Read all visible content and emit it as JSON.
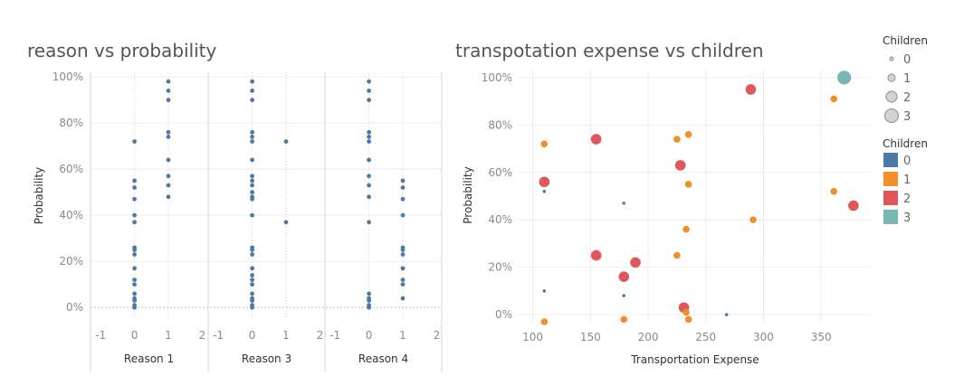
{
  "colors": {
    "reason_dots": "#4e79a7",
    "children_0": "#4e79a7",
    "children_1": "#f28e2b",
    "children_2": "#e15759",
    "children_3": "#76b7b2",
    "grid": "#ececec",
    "zero_line": "#bdbdbd",
    "panel_divider": "#d4d4d4",
    "size_legend_fill": "#d3d3d3",
    "size_legend_stroke": "#9a9a9a"
  },
  "chart_data": [
    {
      "type": "scatter",
      "title": "reason vs probability",
      "ylabel": "Probability",
      "ylim": [
        -0.05,
        1.02
      ],
      "y_ticks": [
        "0%",
        "20%",
        "40%",
        "60%",
        "80%",
        "100%"
      ],
      "x_ticks": [
        "-1",
        "0",
        "1",
        "2"
      ],
      "xlim": [
        -1.3,
        2.15
      ],
      "panels": [
        {
          "label": "Reason 1",
          "points": [
            {
              "x": 0,
              "y": 0.72
            },
            {
              "x": 0,
              "y": 0.55
            },
            {
              "x": 0,
              "y": 0.52
            },
            {
              "x": 0,
              "y": 0.47
            },
            {
              "x": 0,
              "y": 0.4
            },
            {
              "x": 0,
              "y": 0.37
            },
            {
              "x": 0,
              "y": 0.26
            },
            {
              "x": 0,
              "y": 0.25
            },
            {
              "x": 0,
              "y": 0.23
            },
            {
              "x": 0,
              "y": 0.17
            },
            {
              "x": 0,
              "y": 0.12
            },
            {
              "x": 0,
              "y": 0.1
            },
            {
              "x": 0,
              "y": 0.06
            },
            {
              "x": 0,
              "y": 0.04
            },
            {
              "x": 0,
              "y": 0.03
            },
            {
              "x": 0,
              "y": 0.01
            },
            {
              "x": 0,
              "y": 0.0
            },
            {
              "x": 1,
              "y": 0.98
            },
            {
              "x": 1,
              "y": 0.94
            },
            {
              "x": 1,
              "y": 0.9
            },
            {
              "x": 1,
              "y": 0.76
            },
            {
              "x": 1,
              "y": 0.74
            },
            {
              "x": 1,
              "y": 0.64
            },
            {
              "x": 1,
              "y": 0.57
            },
            {
              "x": 1,
              "y": 0.53
            },
            {
              "x": 1,
              "y": 0.48
            }
          ]
        },
        {
          "label": "Reason 3",
          "points": [
            {
              "x": 0,
              "y": 0.98
            },
            {
              "x": 0,
              "y": 0.94
            },
            {
              "x": 0,
              "y": 0.9
            },
            {
              "x": 0,
              "y": 0.76
            },
            {
              "x": 0,
              "y": 0.74
            },
            {
              "x": 0,
              "y": 0.72
            },
            {
              "x": 0,
              "y": 0.64
            },
            {
              "x": 0,
              "y": 0.57
            },
            {
              "x": 0,
              "y": 0.55
            },
            {
              "x": 0,
              "y": 0.53
            },
            {
              "x": 0,
              "y": 0.5
            },
            {
              "x": 0,
              "y": 0.48
            },
            {
              "x": 0,
              "y": 0.47
            },
            {
              "x": 0,
              "y": 0.4
            },
            {
              "x": 0,
              "y": 0.26
            },
            {
              "x": 0,
              "y": 0.25
            },
            {
              "x": 0,
              "y": 0.23
            },
            {
              "x": 0,
              "y": 0.17
            },
            {
              "x": 0,
              "y": 0.14
            },
            {
              "x": 0,
              "y": 0.12
            },
            {
              "x": 0,
              "y": 0.1
            },
            {
              "x": 0,
              "y": 0.06
            },
            {
              "x": 0,
              "y": 0.04
            },
            {
              "x": 0,
              "y": 0.03
            },
            {
              "x": 0,
              "y": 0.01
            },
            {
              "x": 0,
              "y": 0.0
            },
            {
              "x": 1,
              "y": 0.72
            },
            {
              "x": 1,
              "y": 0.37
            }
          ]
        },
        {
          "label": "Reason 4",
          "points": [
            {
              "x": 0,
              "y": 0.98
            },
            {
              "x": 0,
              "y": 0.94
            },
            {
              "x": 0,
              "y": 0.9
            },
            {
              "x": 0,
              "y": 0.76
            },
            {
              "x": 0,
              "y": 0.74
            },
            {
              "x": 0,
              "y": 0.72
            },
            {
              "x": 0,
              "y": 0.64
            },
            {
              "x": 0,
              "y": 0.57
            },
            {
              "x": 0,
              "y": 0.53
            },
            {
              "x": 0,
              "y": 0.48
            },
            {
              "x": 0,
              "y": 0.37
            },
            {
              "x": 0,
              "y": 0.06
            },
            {
              "x": 0,
              "y": 0.04
            },
            {
              "x": 0,
              "y": 0.03
            },
            {
              "x": 0,
              "y": 0.01
            },
            {
              "x": 0,
              "y": 0.0
            },
            {
              "x": 1,
              "y": 0.55
            },
            {
              "x": 1,
              "y": 0.52
            },
            {
              "x": 1,
              "y": 0.47
            },
            {
              "x": 1,
              "y": 0.4
            },
            {
              "x": 1,
              "y": 0.26
            },
            {
              "x": 1,
              "y": 0.25
            },
            {
              "x": 1,
              "y": 0.23
            },
            {
              "x": 1,
              "y": 0.17
            },
            {
              "x": 1,
              "y": 0.12
            },
            {
              "x": 1,
              "y": 0.1
            },
            {
              "x": 1,
              "y": 0.04
            }
          ]
        }
      ]
    },
    {
      "type": "scatter",
      "title": "transpotation expense vs children",
      "xlabel": "Transportation Expense",
      "ylabel": "Probability",
      "xlim": [
        87,
        393
      ],
      "ylim": [
        -0.03,
        1.03
      ],
      "x_ticks": [
        "100",
        "150",
        "200",
        "250",
        "300",
        "350"
      ],
      "y_ticks": [
        "0%",
        "20%",
        "40%",
        "60%",
        "80%",
        "100%"
      ],
      "points": [
        {
          "x": 370,
          "y": 1.0,
          "children": 3
        },
        {
          "x": 289,
          "y": 0.95,
          "children": 2
        },
        {
          "x": 361,
          "y": 0.91,
          "children": 1
        },
        {
          "x": 235,
          "y": 0.76,
          "children": 1
        },
        {
          "x": 155,
          "y": 0.74,
          "children": 2
        },
        {
          "x": 225,
          "y": 0.74,
          "children": 1
        },
        {
          "x": 110,
          "y": 0.72,
          "children": 1
        },
        {
          "x": 228,
          "y": 0.63,
          "children": 2
        },
        {
          "x": 110,
          "y": 0.56,
          "children": 2
        },
        {
          "x": 235,
          "y": 0.55,
          "children": 1
        },
        {
          "x": 110,
          "y": 0.52,
          "children": 0
        },
        {
          "x": 361,
          "y": 0.52,
          "children": 1
        },
        {
          "x": 179,
          "y": 0.47,
          "children": 0
        },
        {
          "x": 378,
          "y": 0.46,
          "children": 2
        },
        {
          "x": 291,
          "y": 0.4,
          "children": 1
        },
        {
          "x": 233,
          "y": 0.36,
          "children": 1
        },
        {
          "x": 155,
          "y": 0.25,
          "children": 2
        },
        {
          "x": 225,
          "y": 0.25,
          "children": 1
        },
        {
          "x": 189,
          "y": 0.22,
          "children": 2
        },
        {
          "x": 179,
          "y": 0.16,
          "children": 2
        },
        {
          "x": 110,
          "y": 0.1,
          "children": 0
        },
        {
          "x": 179,
          "y": 0.08,
          "children": 0
        },
        {
          "x": 231,
          "y": 0.03,
          "children": 2
        },
        {
          "x": 233,
          "y": 0.01,
          "children": 1
        },
        {
          "x": 268,
          "y": 0.0,
          "children": 0
        },
        {
          "x": 235,
          "y": -0.02,
          "children": 1
        },
        {
          "x": 110,
          "y": -0.03,
          "children": 1
        },
        {
          "x": 179,
          "y": -0.02,
          "children": 1
        }
      ]
    }
  ],
  "titles": {
    "left": "reason vs probability",
    "right": "transpotation expense vs children"
  },
  "legend": {
    "size": {
      "title": "Children",
      "items": [
        "0",
        "1",
        "2",
        "3"
      ]
    },
    "color": {
      "title": "Children",
      "items": [
        "0",
        "1",
        "2",
        "3"
      ]
    }
  }
}
